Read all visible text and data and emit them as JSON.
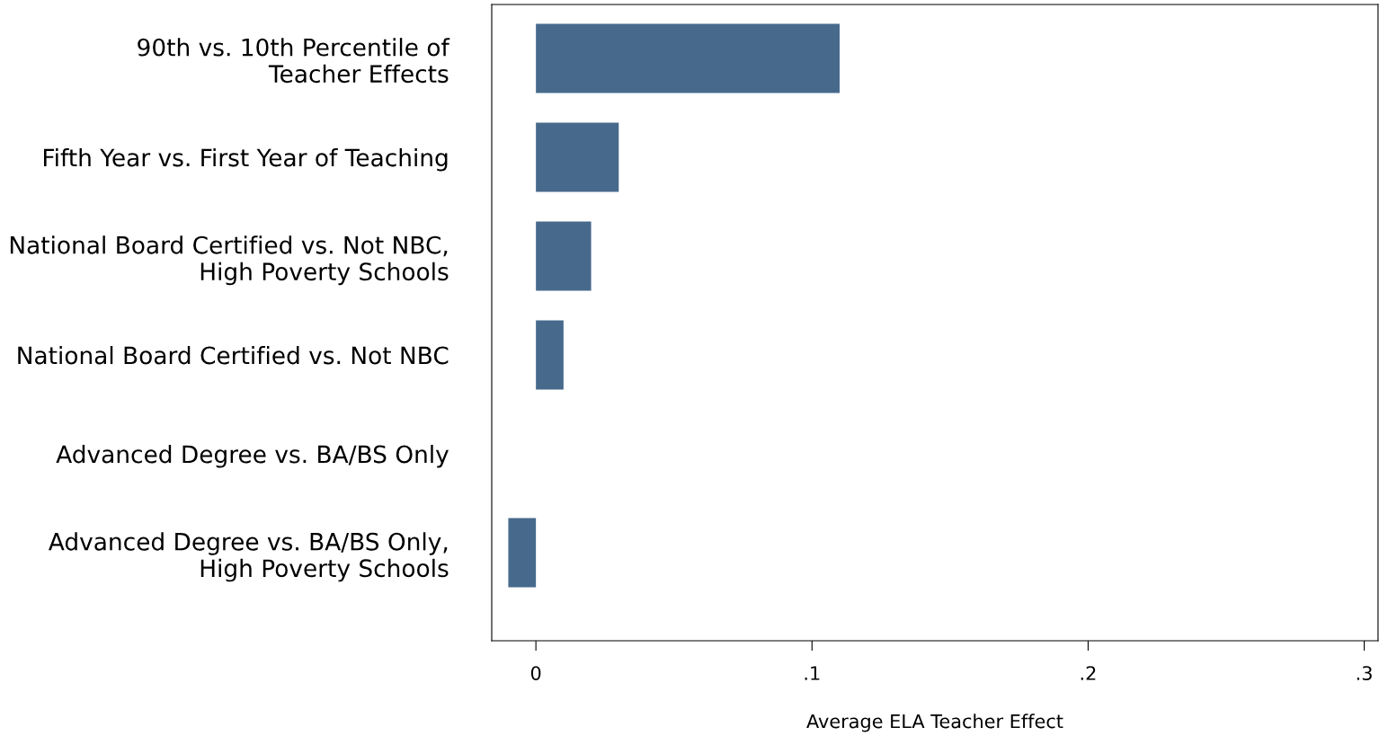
{
  "chart_data": {
    "type": "bar",
    "orientation": "horizontal",
    "categories": [
      "90th vs. 10th Percentile of\nTeacher Effects",
      "Fifth Year vs. First Year of Teaching",
      "National Board Certified vs. Not NBC,\nHigh Poverty Schools",
      "National Board Certified vs. Not NBC",
      "Advanced Degree vs. BA/BS Only",
      "Advanced Degree vs. BA/BS Only,\nHigh Poverty Schools"
    ],
    "values": [
      0.11,
      0.03,
      0.02,
      0.01,
      0,
      -0.01
    ],
    "color": "#476a8c",
    "xlabel": "Average ELA Teacher Effect",
    "xlim": [
      -0.016,
      0.305
    ],
    "xticks": [
      0,
      {
        "value": 0.1,
        "label": ".1"
      },
      {
        "value": 0.2,
        "label": ".2"
      },
      {
        "value": 0.3,
        "label": ".3"
      }
    ],
    "grid": false,
    "legend": false
  }
}
